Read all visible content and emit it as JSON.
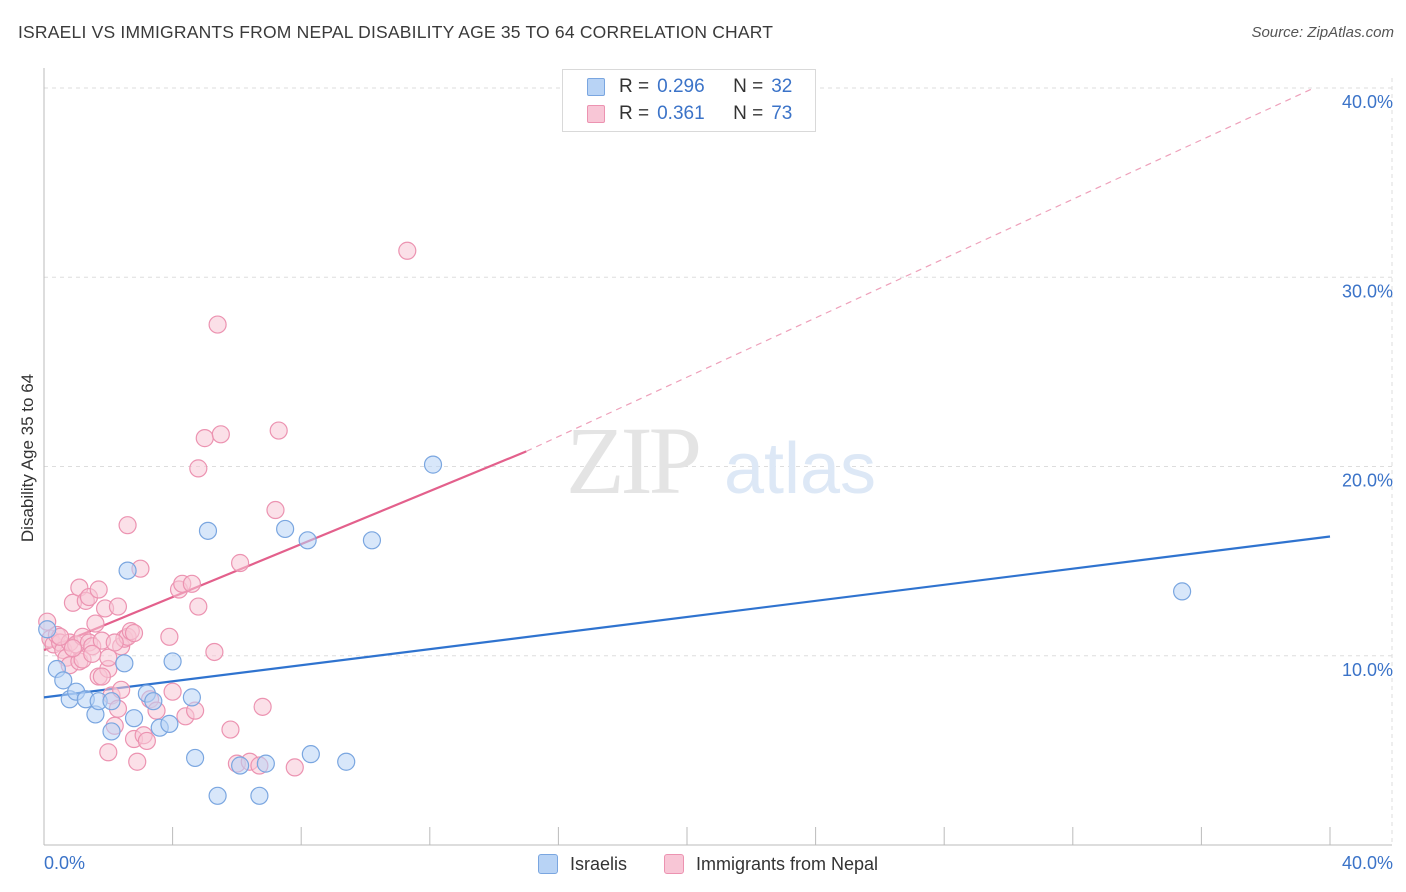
{
  "title": "ISRAELI VS IMMIGRANTS FROM NEPAL DISABILITY AGE 35 TO 64 CORRELATION CHART",
  "source": "Source: ZipAtlas.com",
  "watermark": {
    "zip": "ZIP",
    "atlas": "atlas"
  },
  "legend_top": [
    {
      "r_label": "R =",
      "r_value": "0.296",
      "n_label": "N =",
      "n_value": "32"
    },
    {
      "r_label": "R =",
      "r_value": "0.361",
      "n_label": "N =",
      "n_value": "73"
    }
  ],
  "legend_bottom": [
    "Israelis",
    "Immigrants from Nepal"
  ],
  "colors": {
    "israelis_fill": "#b8d3f5",
    "israelis_stroke": "#7aa6e0",
    "israelis_line": "#2f73cf",
    "nepal_fill": "#f8c6d6",
    "nepal_stroke": "#ec93b1",
    "nepal_line": "#e3608c",
    "axis_text": "#3b73c8",
    "grid": "#dddddd"
  },
  "chart_data": {
    "type": "scatter",
    "title": "ISRAELI VS IMMIGRANTS FROM NEPAL DISABILITY AGE 35 TO 64 CORRELATION CHART",
    "xlabel": "",
    "ylabel": "Disability Age 35 to 64",
    "xlim": [
      0,
      40
    ],
    "ylim": [
      0,
      40
    ],
    "x_tick_labels": [
      "0.0%",
      "40.0%"
    ],
    "y_ticks": [
      10,
      20,
      30,
      40
    ],
    "y_tick_labels": [
      "10.0%",
      "20.0%",
      "30.0%",
      "40.0%"
    ],
    "grid": true,
    "series": [
      {
        "name": "Israelis",
        "points": [
          [
            0.1,
            11.4
          ],
          [
            0.4,
            9.3
          ],
          [
            0.6,
            8.7
          ],
          [
            0.8,
            7.7
          ],
          [
            1.0,
            8.1
          ],
          [
            1.3,
            7.7
          ],
          [
            1.6,
            6.9
          ],
          [
            1.7,
            7.6
          ],
          [
            2.1,
            7.6
          ],
          [
            2.1,
            6.0
          ],
          [
            2.5,
            9.6
          ],
          [
            2.6,
            14.5
          ],
          [
            2.8,
            6.7
          ],
          [
            3.2,
            8.0
          ],
          [
            3.4,
            7.6
          ],
          [
            3.6,
            6.2
          ],
          [
            3.9,
            6.4
          ],
          [
            4.0,
            9.7
          ],
          [
            4.6,
            7.8
          ],
          [
            4.7,
            4.6
          ],
          [
            5.1,
            16.6
          ],
          [
            5.4,
            2.6
          ],
          [
            6.1,
            4.2
          ],
          [
            6.7,
            2.6
          ],
          [
            6.9,
            4.3
          ],
          [
            7.5,
            16.7
          ],
          [
            8.2,
            16.1
          ],
          [
            8.3,
            4.8
          ],
          [
            9.4,
            4.4
          ],
          [
            10.2,
            16.1
          ],
          [
            12.1,
            20.1
          ],
          [
            35.4,
            13.4
          ]
        ],
        "trend": {
          "x": [
            0,
            40
          ],
          "y": [
            7.8,
            16.3
          ],
          "dashed": false
        }
      },
      {
        "name": "Immigrants from Nepal",
        "points": [
          [
            0.1,
            11.8
          ],
          [
            0.2,
            10.9
          ],
          [
            0.3,
            10.6
          ],
          [
            0.4,
            11.1
          ],
          [
            0.5,
            10.7
          ],
          [
            0.6,
            10.3
          ],
          [
            0.7,
            9.9
          ],
          [
            0.8,
            10.7
          ],
          [
            0.8,
            9.5
          ],
          [
            0.9,
            12.8
          ],
          [
            1.0,
            10.6
          ],
          [
            1.1,
            9.7
          ],
          [
            1.1,
            13.6
          ],
          [
            1.2,
            11.0
          ],
          [
            1.3,
            12.9
          ],
          [
            1.4,
            10.7
          ],
          [
            1.4,
            13.1
          ],
          [
            1.5,
            10.5
          ],
          [
            1.6,
            11.7
          ],
          [
            1.7,
            8.9
          ],
          [
            1.7,
            13.5
          ],
          [
            1.8,
            10.8
          ],
          [
            1.9,
            12.5
          ],
          [
            2.0,
            9.3
          ],
          [
            2.0,
            9.9
          ],
          [
            2.0,
            4.9
          ],
          [
            2.1,
            7.9
          ],
          [
            2.2,
            6.3
          ],
          [
            2.3,
            12.6
          ],
          [
            2.3,
            7.2
          ],
          [
            2.4,
            10.5
          ],
          [
            2.5,
            10.9
          ],
          [
            2.6,
            16.9
          ],
          [
            2.6,
            11.0
          ],
          [
            2.7,
            11.3
          ],
          [
            2.8,
            5.6
          ],
          [
            2.9,
            4.4
          ],
          [
            3.0,
            14.6
          ],
          [
            3.1,
            5.8
          ],
          [
            3.3,
            7.7
          ],
          [
            3.5,
            7.1
          ],
          [
            3.9,
            11.0
          ],
          [
            4.0,
            8.1
          ],
          [
            4.2,
            13.5
          ],
          [
            4.3,
            13.8
          ],
          [
            4.4,
            6.8
          ],
          [
            4.6,
            13.8
          ],
          [
            4.8,
            12.6
          ],
          [
            4.7,
            7.1
          ],
          [
            4.8,
            19.9
          ],
          [
            5.0,
            21.5
          ],
          [
            5.3,
            10.2
          ],
          [
            5.4,
            27.5
          ],
          [
            5.5,
            21.7
          ],
          [
            5.8,
            6.1
          ],
          [
            6.0,
            4.3
          ],
          [
            6.1,
            14.9
          ],
          [
            6.4,
            4.4
          ],
          [
            6.7,
            4.2
          ],
          [
            6.8,
            7.3
          ],
          [
            7.2,
            17.7
          ],
          [
            7.3,
            21.9
          ],
          [
            7.8,
            4.1
          ],
          [
            11.3,
            31.4
          ],
          [
            1.2,
            9.8
          ],
          [
            0.5,
            11.0
          ],
          [
            1.5,
            10.1
          ],
          [
            2.2,
            10.7
          ],
          [
            3.2,
            5.5
          ],
          [
            0.9,
            10.4
          ],
          [
            2.4,
            8.2
          ],
          [
            1.8,
            8.9
          ],
          [
            2.8,
            11.2
          ]
        ],
        "trend": {
          "x": [
            0,
            15
          ],
          "y": [
            10.3,
            20.8
          ],
          "dashed": false,
          "extension": {
            "x": [
              15,
              39.5
            ],
            "y": [
              20.8,
              40.0
            ],
            "dashed": true
          }
        }
      }
    ]
  }
}
